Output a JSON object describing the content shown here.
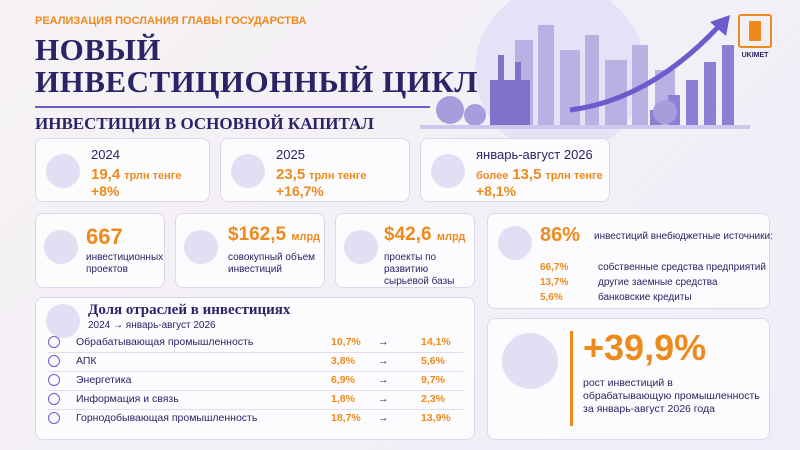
{
  "header": {
    "kicker": "РЕАЛИЗАЦИЯ ПОСЛАНИЯ ГЛАВЫ ГОСУДАРСТВА",
    "title": [
      "НОВЫЙ",
      "ИНВЕСТИЦИОННЫЙ ЦИКЛ"
    ],
    "section": "ИНВЕСТИЦИИ В ОСНОВНОЙ КАПИТАЛ",
    "logo": "UKIMET"
  },
  "periods": [
    {
      "label": "2024",
      "prefix": null,
      "amount": "19,4",
      "unit": "трлн тенге",
      "growth": "+8%"
    },
    {
      "label": "2025",
      "prefix": null,
      "amount": "23,5",
      "unit": "трлн тенге",
      "growth": "+16,7%"
    },
    {
      "label": "январь-август 2026",
      "prefix": "более",
      "amount": "13,5",
      "unit": "трлн тенге",
      "growth": "+8,1%"
    }
  ],
  "stats": [
    {
      "value": "667",
      "unit": null,
      "label": "инвестиционных проектов"
    },
    {
      "value": "$162,5",
      "unit": "млрд",
      "label": "совокупный объем инвестиций"
    },
    {
      "value": "$42,6",
      "unit": "млрд",
      "label": "проекты по развитию сырьевой базы"
    }
  ],
  "sources": {
    "value": "86%",
    "label": "инвестиций внебюджетные источники:",
    "items": [
      {
        "share": "66,7%",
        "label": "собственные средства предприятий"
      },
      {
        "share": "13,7%",
        "label": "другие заемные средства"
      },
      {
        "share": "5,6%",
        "label": "банковские кредиты"
      }
    ]
  },
  "sectors": {
    "title": "Доля отраслей в инвестициях",
    "subtitle": "2024 → январь-август 2026",
    "arrow": "→",
    "rows": [
      {
        "name": "Обрабатывающая промышленность",
        "from": "10,7%",
        "to": "14,1%"
      },
      {
        "name": "АПК",
        "from": "3,8%",
        "to": "5,6%"
      },
      {
        "name": "Энергетика",
        "from": "6,9%",
        "to": "9,7%"
      },
      {
        "name": "Информация и связь",
        "from": "1,8%",
        "to": "2,3%"
      },
      {
        "name": "Горнодобывающая промышленность",
        "from": "18,7%",
        "to": "13,9%"
      }
    ]
  },
  "growth": {
    "value": "+39,9%",
    "text": "рост инвестиций в обрабатывающую промышленность за январь-август 2026 года"
  }
}
